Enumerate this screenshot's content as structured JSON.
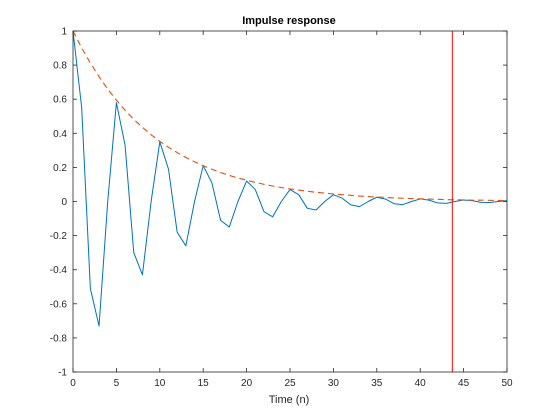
{
  "chart_data": {
    "type": "line",
    "title": "Impulse response",
    "xlabel": "Time (n)",
    "ylabel": "",
    "xlim": [
      0,
      50
    ],
    "ylim": [
      -1,
      1
    ],
    "xticks": [
      0,
      5,
      10,
      15,
      20,
      25,
      30,
      35,
      40,
      45,
      50
    ],
    "yticks": [
      -1,
      -0.8,
      -0.6,
      -0.4,
      -0.2,
      0,
      0.2,
      0.4,
      0.6,
      0.8,
      1
    ],
    "xtick_labels": [
      "0",
      "5",
      "10",
      "15",
      "20",
      "25",
      "30",
      "35",
      "40",
      "45",
      "50"
    ],
    "ytick_labels": [
      "-1",
      "-0.8",
      "-0.6",
      "-0.4",
      "-0.2",
      "0",
      "0.2",
      "0.4",
      "0.6",
      "0.8",
      "1"
    ],
    "grid": false,
    "series": [
      {
        "style": "solid",
        "color": "#0072BD",
        "x": [
          0,
          1,
          2,
          3,
          4,
          5,
          6,
          7,
          8,
          9,
          10,
          11,
          12,
          13,
          14,
          15,
          16,
          17,
          18,
          19,
          20,
          21,
          22,
          23,
          24,
          25,
          26,
          27,
          28,
          29,
          30,
          31,
          32,
          33,
          34,
          35,
          36,
          37,
          38,
          39,
          40,
          41,
          42,
          43,
          44,
          45,
          46,
          47,
          48,
          49,
          50
        ],
        "y": [
          1.0,
          0.55,
          -0.51,
          -0.73,
          0.0,
          0.58,
          0.33,
          -0.3,
          -0.43,
          0.0,
          0.35,
          0.19,
          -0.18,
          -0.26,
          0.0,
          0.21,
          0.11,
          -0.11,
          -0.15,
          0.0,
          0.12,
          0.07,
          -0.06,
          -0.09,
          0.0,
          0.07,
          0.04,
          -0.04,
          -0.05,
          0.0,
          0.04,
          0.02,
          -0.02,
          -0.03,
          0.0,
          0.025,
          0.014,
          -0.013,
          -0.018,
          0.0,
          0.015,
          0.008,
          -0.008,
          -0.011,
          0.0,
          0.009,
          0.005,
          -0.005,
          -0.006,
          0.0,
          0.005
        ]
      },
      {
        "style": "dashed",
        "color": "#D95319",
        "x": [
          0,
          1,
          2,
          3,
          4,
          5,
          6,
          7,
          8,
          9,
          10,
          11,
          12,
          13,
          14,
          15,
          16,
          17,
          18,
          19,
          20,
          21,
          22,
          23,
          24,
          25,
          26,
          27,
          28,
          29,
          30,
          31,
          32,
          33,
          34,
          35,
          36,
          37,
          38,
          39,
          40,
          41,
          42,
          43,
          44,
          45,
          46,
          47,
          48,
          49,
          50
        ],
        "y": [
          1.0,
          0.901,
          0.812,
          0.732,
          0.659,
          0.594,
          0.535,
          0.482,
          0.435,
          0.392,
          0.353,
          0.318,
          0.287,
          0.258,
          0.233,
          0.21,
          0.189,
          0.17,
          0.153,
          0.138,
          0.125,
          0.112,
          0.101,
          0.091,
          0.082,
          0.074,
          0.067,
          0.06,
          0.054,
          0.049,
          0.044,
          0.04,
          0.036,
          0.032,
          0.029,
          0.026,
          0.024,
          0.021,
          0.019,
          0.017,
          0.016,
          0.014,
          0.013,
          0.011,
          0.01,
          0.009,
          0.008,
          0.008,
          0.007,
          0.006,
          0.005
        ]
      }
    ],
    "vertical_line": {
      "x": 43.7,
      "color": "#FF0000"
    }
  }
}
